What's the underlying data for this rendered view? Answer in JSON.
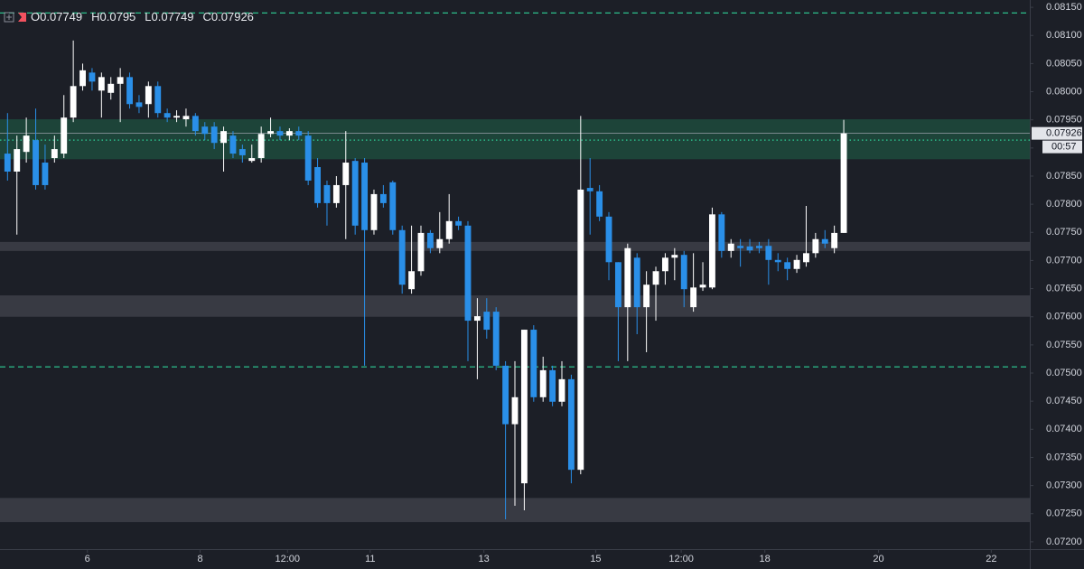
{
  "chart_data": {
    "type": "candlestick",
    "ohlc_header": [
      {
        "label": "O",
        "value": 0.07749
      },
      {
        "label": "H",
        "value": 0.0795
      },
      {
        "label": "L",
        "value": 0.07749
      },
      {
        "label": "C",
        "value": 0.07926
      }
    ],
    "last_price": 0.07926,
    "countdown": "00:57",
    "up_color": "#ffffff",
    "down_color": "#2a8fe8",
    "x": [
      0,
      1,
      2,
      3,
      4,
      5,
      6,
      7,
      8,
      9,
      10,
      11,
      12,
      13,
      14,
      15,
      16,
      17,
      18,
      19,
      20,
      21,
      22,
      23,
      24,
      25,
      26,
      27,
      28,
      29,
      30,
      31,
      32,
      33,
      34,
      35,
      36,
      37,
      38,
      39,
      40,
      41,
      42,
      43,
      44,
      45,
      46,
      47,
      48,
      49,
      50,
      51,
      52,
      53,
      54,
      55,
      56,
      57,
      58,
      59,
      60,
      61,
      62,
      63,
      64,
      65,
      66,
      67,
      68,
      69,
      70,
      71,
      72,
      73,
      74,
      75,
      76,
      77,
      78,
      79,
      80,
      81,
      82,
      83,
      84,
      85,
      86,
      87,
      88,
      89
    ],
    "open": [
      0.0789,
      0.07858,
      0.07893,
      0.07914,
      0.07874,
      0.07882,
      0.0789,
      0.07954,
      0.0801,
      0.08034,
      0.08002,
      0.07998,
      0.08014,
      0.08026,
      0.07981,
      0.07978,
      0.0801,
      0.07962,
      0.07954,
      0.07951,
      0.07957,
      0.07938,
      0.07938,
      0.07909,
      0.07922,
      0.07898,
      0.07877,
      0.07882,
      0.07925,
      0.0793,
      0.07922,
      0.0793,
      0.07922,
      0.07866,
      0.07834,
      0.07802,
      0.07834,
      0.07877,
      0.07874,
      0.07754,
      0.07818,
      0.07839,
      0.07754,
      0.07649,
      0.07681,
      0.07749,
      0.07722,
      0.07738,
      0.0777,
      0.07762,
      0.07593,
      0.07609,
      0.07609,
      0.07513,
      0.07409,
      0.07304,
      0.07577,
      0.07457,
      0.07505,
      0.07449,
      0.07489,
      0.07328,
      0.07829,
      0.07823,
      0.07778,
      0.07697,
      0.07617,
      0.07705,
      0.07617,
      0.07657,
      0.07681,
      0.07705,
      0.0771,
      0.07617,
      0.07652,
      0.07652,
      0.07782,
      0.07717,
      0.07726,
      0.07725,
      0.07726,
      0.07726,
      0.07701,
      0.07697,
      0.07685,
      0.07697,
      0.07713,
      0.07738,
      0.07722,
      0.07749
    ],
    "high": [
      0.07962,
      0.07922,
      0.07954,
      0.0797,
      0.07906,
      0.07922,
      0.07994,
      0.08091,
      0.0805,
      0.08042,
      0.08034,
      0.08026,
      0.08042,
      0.08034,
      0.07994,
      0.08018,
      0.08018,
      0.0797,
      0.07967,
      0.0797,
      0.07962,
      0.07946,
      0.07946,
      0.07938,
      0.0793,
      0.07906,
      0.07906,
      0.07938,
      0.07954,
      0.07938,
      0.07935,
      0.07938,
      0.0793,
      0.07882,
      0.07842,
      0.0785,
      0.0793,
      0.07882,
      0.07882,
      0.07826,
      0.07834,
      0.07842,
      0.07762,
      0.07762,
      0.07762,
      0.07754,
      0.07786,
      0.07818,
      0.07778,
      0.0777,
      0.07633,
      0.07633,
      0.07617,
      0.07521,
      0.07521,
      0.07577,
      0.07585,
      0.07529,
      0.07513,
      0.07521,
      0.07497,
      0.07957,
      0.07882,
      0.07834,
      0.07786,
      0.07697,
      0.0773,
      0.07713,
      0.07681,
      0.07689,
      0.07713,
      0.07722,
      0.07717,
      0.07713,
      0.07697,
      0.07794,
      0.07786,
      0.07738,
      0.07738,
      0.07738,
      0.07733,
      0.07738,
      0.07713,
      0.07705,
      0.0771,
      0.07797,
      0.07749,
      0.07754,
      0.07762,
      0.0795
    ],
    "low": [
      0.07842,
      0.07746,
      0.07874,
      0.07826,
      0.07826,
      0.07874,
      0.07882,
      0.07946,
      0.08002,
      0.08002,
      0.07954,
      0.07986,
      0.07946,
      0.0797,
      0.07962,
      0.07954,
      0.07954,
      0.07946,
      0.07946,
      0.07938,
      0.07922,
      0.07914,
      0.07898,
      0.07858,
      0.07882,
      0.07874,
      0.07874,
      0.07874,
      0.07919,
      0.07914,
      0.07914,
      0.07914,
      0.07834,
      0.07794,
      0.07762,
      0.07794,
      0.07738,
      0.07746,
      0.07513,
      0.07746,
      0.07794,
      0.07746,
      0.07641,
      0.07641,
      0.07673,
      0.07713,
      0.07713,
      0.0773,
      0.07754,
      0.07521,
      0.07489,
      0.07561,
      0.07505,
      0.0724,
      0.07264,
      0.07256,
      0.07449,
      0.07449,
      0.07441,
      0.07441,
      0.07304,
      0.0732,
      0.07746,
      0.0777,
      0.07665,
      0.07521,
      0.07521,
      0.07569,
      0.07537,
      0.07593,
      0.07657,
      0.07665,
      0.07617,
      0.07609,
      0.07646,
      0.07649,
      0.07705,
      0.07705,
      0.07689,
      0.07713,
      0.07713,
      0.07657,
      0.07681,
      0.07665,
      0.07678,
      0.07689,
      0.07705,
      0.07722,
      0.07713,
      0.07749
    ],
    "close": [
      0.07858,
      0.07898,
      0.07922,
      0.07834,
      0.07834,
      0.07898,
      0.07954,
      0.0801,
      0.08038,
      0.08018,
      0.08026,
      0.08014,
      0.08026,
      0.07978,
      0.07973,
      0.0801,
      0.07962,
      0.07954,
      0.07957,
      0.07957,
      0.0793,
      0.07925,
      0.07909,
      0.0793,
      0.0789,
      0.07887,
      0.07882,
      0.07925,
      0.0793,
      0.07922,
      0.0793,
      0.07922,
      0.07842,
      0.07802,
      0.07802,
      0.07834,
      0.07874,
      0.07762,
      0.07754,
      0.07818,
      0.07802,
      0.07754,
      0.07657,
      0.07681,
      0.07749,
      0.07722,
      0.07738,
      0.0777,
      0.07762,
      0.07593,
      0.07601,
      0.07577,
      0.07513,
      0.07409,
      0.07457,
      0.07577,
      0.07457,
      0.07505,
      0.07449,
      0.07489,
      0.07328,
      0.07826,
      0.07823,
      0.07778,
      0.07697,
      0.07617,
      0.07722,
      0.07617,
      0.07657,
      0.07681,
      0.07705,
      0.0771,
      0.07649,
      0.07652,
      0.07657,
      0.07782,
      0.07717,
      0.0773,
      0.07722,
      0.07718,
      0.07722,
      0.07701,
      0.07697,
      0.07685,
      0.07701,
      0.07713,
      0.07738,
      0.0773,
      0.07749,
      0.07926
    ],
    "zones": [
      {
        "from": 0.0788,
        "to": 0.07951,
        "color": "#1d4b3d"
      },
      {
        "from": 0.07717,
        "to": 0.07733,
        "color": "#3d4049"
      },
      {
        "from": 0.076,
        "to": 0.07638,
        "color": "#3d4049"
      },
      {
        "from": 0.07235,
        "to": 0.07278,
        "color": "#3d4049"
      }
    ],
    "hlines": [
      {
        "value": 0.0814,
        "style": "dashed",
        "color": "#2ed197"
      },
      {
        "value": 0.07914,
        "style": "dotted",
        "color": "#2ed197"
      },
      {
        "value": 0.07511,
        "style": "dashed",
        "color": "#2ed197"
      }
    ],
    "xlim": [
      -0.8,
      108.8
    ],
    "xticks": [
      {
        "value": 8.5,
        "label": "6"
      },
      {
        "value": 20.5,
        "label": "8"
      },
      {
        "value": 29.8,
        "label": "12:00"
      },
      {
        "value": 38.6,
        "label": "11"
      },
      {
        "value": 50.7,
        "label": "13"
      },
      {
        "value": 62.6,
        "label": "15"
      },
      {
        "value": 71.7,
        "label": "12:00"
      },
      {
        "value": 80.6,
        "label": "18"
      },
      {
        "value": 92.7,
        "label": "20"
      },
      {
        "value": 104.7,
        "label": "22"
      }
    ],
    "ylim": [
      0.07187,
      0.08163
    ],
    "yticks": [
      {
        "value": 0.072,
        "label": "0.07200"
      },
      {
        "value": 0.0725,
        "label": "0.07250"
      },
      {
        "value": 0.073,
        "label": "0.07300"
      },
      {
        "value": 0.0735,
        "label": "0.07350"
      },
      {
        "value": 0.074,
        "label": "0.07400"
      },
      {
        "value": 0.0745,
        "label": "0.07450"
      },
      {
        "value": 0.075,
        "label": "0.07500"
      },
      {
        "value": 0.0755,
        "label": "0.07550"
      },
      {
        "value": 0.076,
        "label": "0.07600"
      },
      {
        "value": 0.0765,
        "label": "0.07650"
      },
      {
        "value": 0.077,
        "label": "0.07700"
      },
      {
        "value": 0.0775,
        "label": "0.07750"
      },
      {
        "value": 0.078,
        "label": "0.07800"
      },
      {
        "value": 0.0785,
        "label": "0.07850"
      },
      {
        "value": 0.079,
        "label": "0.07900"
      },
      {
        "value": 0.0795,
        "label": "0.07950"
      },
      {
        "value": 0.08,
        "label": "0.08000"
      },
      {
        "value": 0.0805,
        "label": "0.08050"
      },
      {
        "value": 0.081,
        "label": "0.08100"
      },
      {
        "value": 0.0815,
        "label": "0.08150"
      }
    ]
  }
}
